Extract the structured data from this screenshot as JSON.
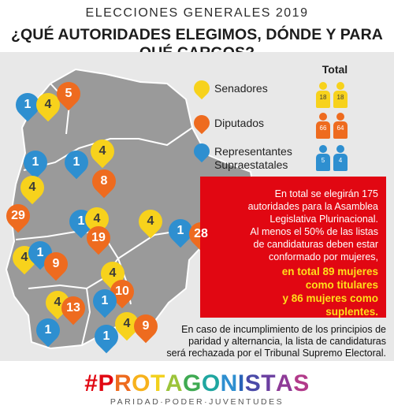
{
  "header": {
    "supertitle": "ELECCIONES GENERALES 2019",
    "title": "¿QUÉ AUTORIDADES ELEGIMOS, DÓNDE Y PARA QUÉ CARGOS?"
  },
  "colors": {
    "senadores": "#f7d21c",
    "diputados": "#ee6b1f",
    "representantes": "#2e8fd0",
    "map_fill": "#9a9a9a",
    "panel_bg": "#e8e8e8",
    "red_box": "#e10712",
    "highlight_text": "#ffde1a"
  },
  "legend": {
    "total_label": "Total",
    "rows": [
      {
        "label": "Senadores",
        "color": "yellow",
        "totals": [
          "18",
          "18"
        ]
      },
      {
        "label": "Diputados",
        "color": "orange",
        "totals": [
          "66",
          "64"
        ]
      },
      {
        "label_line1": "Representantes",
        "label_line2": "Supraestatales",
        "color": "blue",
        "totals": [
          "5",
          "4"
        ]
      }
    ]
  },
  "map_markers": [
    {
      "type": "representantes",
      "value": "1"
    },
    {
      "type": "senadores",
      "value": "4"
    },
    {
      "type": "diputados",
      "value": "5"
    },
    {
      "type": "representantes",
      "value": "1"
    },
    {
      "type": "representantes",
      "value": "1"
    },
    {
      "type": "senadores",
      "value": "4"
    },
    {
      "type": "senadores",
      "value": "4"
    },
    {
      "type": "diputados",
      "value": "8"
    },
    {
      "type": "diputados",
      "value": "29"
    },
    {
      "type": "representantes",
      "value": "1"
    },
    {
      "type": "senadores",
      "value": "4"
    },
    {
      "type": "diputados",
      "value": "19"
    },
    {
      "type": "senadores",
      "value": "4"
    },
    {
      "type": "representantes",
      "value": "1"
    },
    {
      "type": "diputados",
      "value": "28"
    },
    {
      "type": "senadores",
      "value": "4"
    },
    {
      "type": "representantes",
      "value": "1"
    },
    {
      "type": "diputados",
      "value": "9"
    },
    {
      "type": "senadores",
      "value": "4"
    },
    {
      "type": "diputados",
      "value": "10"
    },
    {
      "type": "senadores",
      "value": "4"
    },
    {
      "type": "diputados",
      "value": "13"
    },
    {
      "type": "representantes",
      "value": "1"
    },
    {
      "type": "representantes",
      "value": "1"
    },
    {
      "type": "senadores",
      "value": "4"
    },
    {
      "type": "diputados",
      "value": "9"
    },
    {
      "type": "representantes",
      "value": "1"
    }
  ],
  "info_box": {
    "line1": "En total se elegirán 175",
    "line2": "autoridades para la Asamblea",
    "line3": "Legislativa Plurinacional.",
    "line4": "Al menos el 50% de las listas",
    "line5": "de candidaturas deben estar",
    "line6": "conformado por mujeres,",
    "highlight1": "en total 89 mujeres",
    "highlight2": "como titulares",
    "highlight3": "y 86 mujeres como",
    "highlight4": "suplentes."
  },
  "warning": {
    "line1": "En caso de incumplimiento de los principios de",
    "line2": "paridad y alternancia,  la lista de candidaturas",
    "line3": "será rechazada por el Tribunal Supremo Electoral."
  },
  "brand": {
    "hashtag": "#",
    "letters": [
      "P",
      "R",
      "O",
      "T",
      "A",
      "G",
      "O",
      "N",
      "I",
      "S",
      "T",
      "A",
      "S"
    ],
    "tagline": "PARIDAD·PODER·JUVENTUDES"
  }
}
